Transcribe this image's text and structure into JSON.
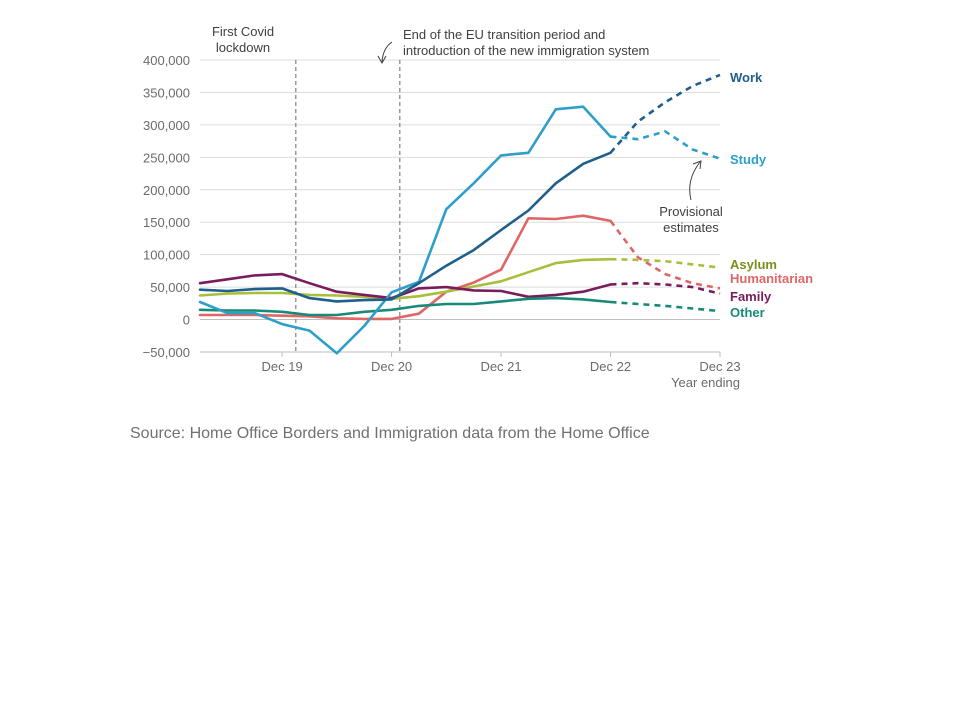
{
  "chart_data": {
    "type": "line",
    "x": [
      "Mar 19",
      "Jun 19",
      "Sep 19",
      "Dec 19",
      "Mar 20",
      "Jun 20",
      "Sep 20",
      "Dec 20",
      "Mar 21",
      "Jun 21",
      "Sep 21",
      "Dec 21",
      "Mar 22",
      "Jun 22",
      "Sep 22",
      "Dec 22",
      "Mar 23",
      "Jun 23",
      "Sep 23",
      "Dec 23"
    ],
    "x_ticks": [
      "Dec 19",
      "Dec 20",
      "Dec 21",
      "Dec 22",
      "Dec 23"
    ],
    "xlabel": "Year ending",
    "ylabel": "",
    "ylim": [
      -50000,
      400000
    ],
    "y_ticks": [
      -50000,
      0,
      50000,
      100000,
      150000,
      200000,
      250000,
      300000,
      350000,
      400000
    ],
    "y_tick_labels": [
      "−50,000",
      "0",
      "50,000",
      "100,000",
      "150,000",
      "200,000",
      "250,000",
      "300,000",
      "350,000",
      "400,000"
    ],
    "grid": true,
    "provisional_from_index": 15,
    "series": [
      {
        "name": "Work",
        "color": "#1f5f8b",
        "values": [
          46000,
          44000,
          47000,
          48000,
          33000,
          28000,
          30000,
          31000,
          56000,
          83000,
          107000,
          138000,
          168000,
          210000,
          240000,
          257000,
          305000,
          335000,
          360000,
          377000
        ]
      },
      {
        "name": "Study",
        "color": "#2e9fc8",
        "values": [
          27000,
          10000,
          10000,
          -7000,
          -17000,
          -52000,
          -10000,
          42000,
          58000,
          170000,
          210000,
          253000,
          257000,
          324000,
          328000,
          282000,
          278000,
          290000,
          262000,
          248000
        ]
      },
      {
        "name": "Asylum",
        "color": "#a9bf3c",
        "values": [
          37000,
          40000,
          41000,
          41000,
          38000,
          37000,
          35000,
          32000,
          36000,
          43000,
          51000,
          59000,
          73000,
          87000,
          92000,
          93000,
          92000,
          90000,
          85000,
          80000
        ]
      },
      {
        "name": "Humanitarian",
        "color": "#e06666",
        "values": [
          7000,
          7000,
          7000,
          6000,
          5000,
          2000,
          1000,
          1000,
          9000,
          43000,
          57000,
          77000,
          156000,
          155000,
          160000,
          152000,
          96000,
          70000,
          56000,
          48000
        ]
      },
      {
        "name": "Family",
        "color": "#7a1c5c",
        "values": [
          56000,
          62000,
          68000,
          70000,
          56000,
          43000,
          38000,
          33000,
          48000,
          50000,
          45000,
          44000,
          35000,
          38000,
          43000,
          54000,
          56000,
          54000,
          50000,
          40000
        ]
      },
      {
        "name": "Other",
        "color": "#178b78",
        "values": [
          15000,
          14000,
          14000,
          12000,
          7000,
          7000,
          12000,
          15000,
          21000,
          24000,
          24000,
          28000,
          32000,
          33000,
          31000,
          27000,
          24000,
          21000,
          17000,
          13000
        ]
      }
    ],
    "annotations": [
      {
        "text": [
          "First Covid",
          "lockdown"
        ],
        "x_index": 3.5
      },
      {
        "text": [
          "End of the EU transition period and",
          "introduction of the new immigration system"
        ],
        "x_index": 7.3
      },
      {
        "text": [
          "Provisional",
          "estimates"
        ]
      }
    ]
  },
  "source": "Source: Home Office Borders and Immigration data from the Home Office"
}
